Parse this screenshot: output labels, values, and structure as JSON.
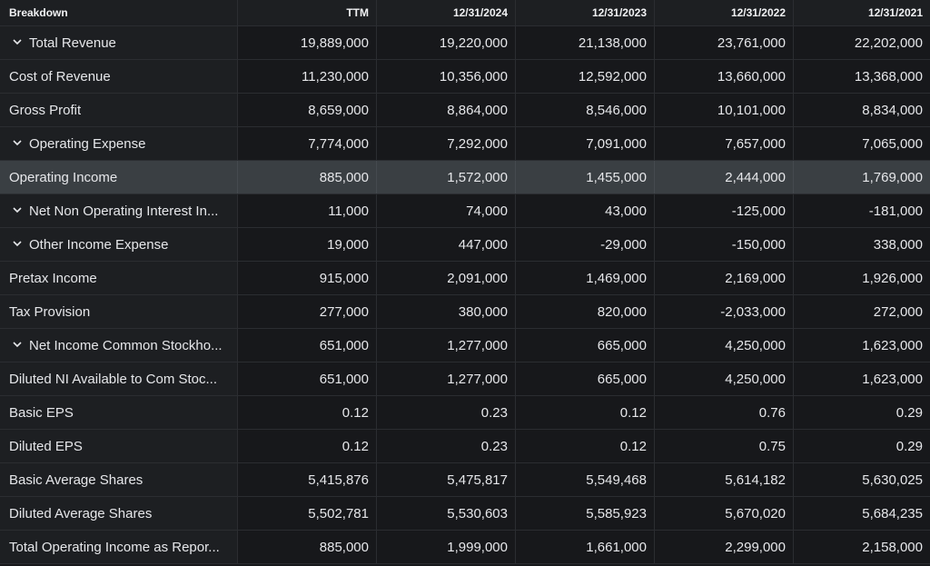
{
  "header": {
    "breakdown": "Breakdown",
    "columns": [
      "TTM",
      "12/31/2024",
      "12/31/2023",
      "12/31/2022",
      "12/31/2021"
    ]
  },
  "rows": [
    {
      "label": "Total Revenue",
      "expandable": true,
      "values": [
        "19,889,000",
        "19,220,000",
        "21,138,000",
        "23,761,000",
        "22,202,000"
      ]
    },
    {
      "label": "Cost of Revenue",
      "expandable": false,
      "values": [
        "11,230,000",
        "10,356,000",
        "12,592,000",
        "13,660,000",
        "13,368,000"
      ]
    },
    {
      "label": "Gross Profit",
      "expandable": false,
      "values": [
        "8,659,000",
        "8,864,000",
        "8,546,000",
        "10,101,000",
        "8,834,000"
      ]
    },
    {
      "label": "Operating Expense",
      "expandable": true,
      "values": [
        "7,774,000",
        "7,292,000",
        "7,091,000",
        "7,657,000",
        "7,065,000"
      ]
    },
    {
      "label": "Operating Income",
      "expandable": false,
      "highlight": true,
      "values": [
        "885,000",
        "1,572,000",
        "1,455,000",
        "2,444,000",
        "1,769,000"
      ]
    },
    {
      "label": "Net Non Operating Interest In...",
      "expandable": true,
      "values": [
        "11,000",
        "74,000",
        "43,000",
        "-125,000",
        "-181,000"
      ]
    },
    {
      "label": "Other Income Expense",
      "expandable": true,
      "values": [
        "19,000",
        "447,000",
        "-29,000",
        "-150,000",
        "338,000"
      ]
    },
    {
      "label": "Pretax Income",
      "expandable": false,
      "values": [
        "915,000",
        "2,091,000",
        "1,469,000",
        "2,169,000",
        "1,926,000"
      ]
    },
    {
      "label": "Tax Provision",
      "expandable": false,
      "values": [
        "277,000",
        "380,000",
        "820,000",
        "-2,033,000",
        "272,000"
      ]
    },
    {
      "label": "Net Income Common Stockho...",
      "expandable": true,
      "values": [
        "651,000",
        "1,277,000",
        "665,000",
        "4,250,000",
        "1,623,000"
      ]
    },
    {
      "label": "Diluted NI Available to Com Stoc...",
      "expandable": false,
      "values": [
        "651,000",
        "1,277,000",
        "665,000",
        "4,250,000",
        "1,623,000"
      ]
    },
    {
      "label": "Basic EPS",
      "expandable": false,
      "values": [
        "0.12",
        "0.23",
        "0.12",
        "0.76",
        "0.29"
      ]
    },
    {
      "label": "Diluted EPS",
      "expandable": false,
      "values": [
        "0.12",
        "0.23",
        "0.12",
        "0.75",
        "0.29"
      ]
    },
    {
      "label": "Basic Average Shares",
      "expandable": false,
      "values": [
        "5,415,876",
        "5,475,817",
        "5,549,468",
        "5,614,182",
        "5,630,025"
      ]
    },
    {
      "label": "Diluted Average Shares",
      "expandable": false,
      "values": [
        "5,502,781",
        "5,530,603",
        "5,585,923",
        "5,670,020",
        "5,684,235"
      ]
    },
    {
      "label": "Total Operating Income as Repor...",
      "expandable": false,
      "values": [
        "885,000",
        "1,999,000",
        "1,661,000",
        "2,299,000",
        "2,158,000"
      ]
    }
  ]
}
